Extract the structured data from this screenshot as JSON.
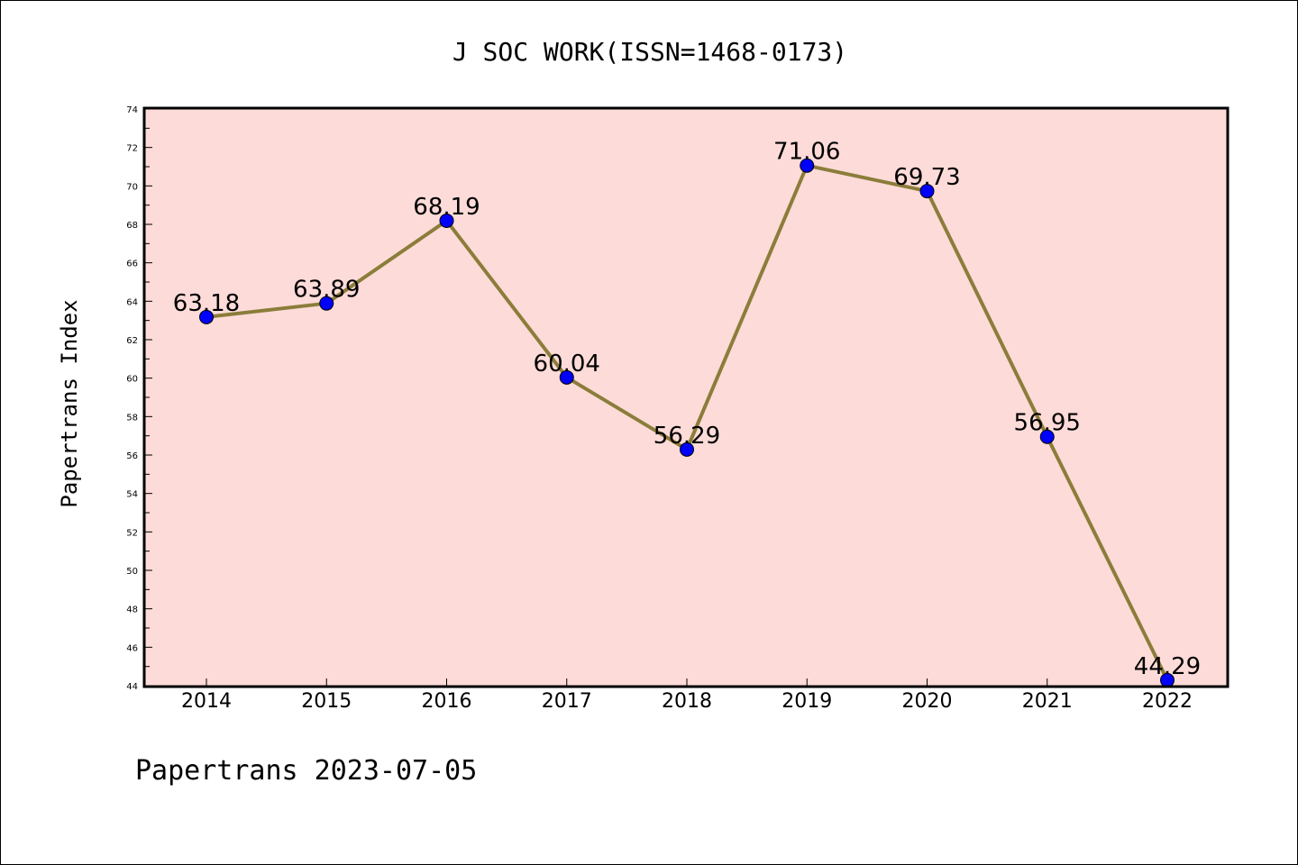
{
  "chart_data": {
    "type": "line",
    "title": "J SOC WORK(ISSN=1468-0173)",
    "xlabel": "",
    "ylabel": "Papertrans Index",
    "categories": [
      "2014",
      "2015",
      "2016",
      "2017",
      "2018",
      "2019",
      "2020",
      "2021",
      "2022"
    ],
    "series": [
      {
        "values": [
          63.18,
          63.89,
          68.19,
          60.04,
          56.29,
          71.06,
          69.73,
          56.95,
          44.29
        ],
        "data_labels": [
          "63.18",
          "63.89",
          "68.19",
          "60.04",
          "56.29",
          "71.06",
          "69.73",
          "56.95",
          "44.29"
        ]
      }
    ],
    "ylim": [
      44,
      74
    ],
    "yticks": [
      "44",
      "46",
      "48",
      "50",
      "52",
      "54",
      "56",
      "58",
      "60",
      "62",
      "64",
      "66",
      "68",
      "70",
      "72",
      "74"
    ],
    "grid": false,
    "legend": "none",
    "footer": "Papertrans 2023-07-05",
    "colors": {
      "plot_background": "#fddbd8",
      "line": "#8b7d3a",
      "marker": "#0000ff",
      "frame": "#000000"
    }
  }
}
